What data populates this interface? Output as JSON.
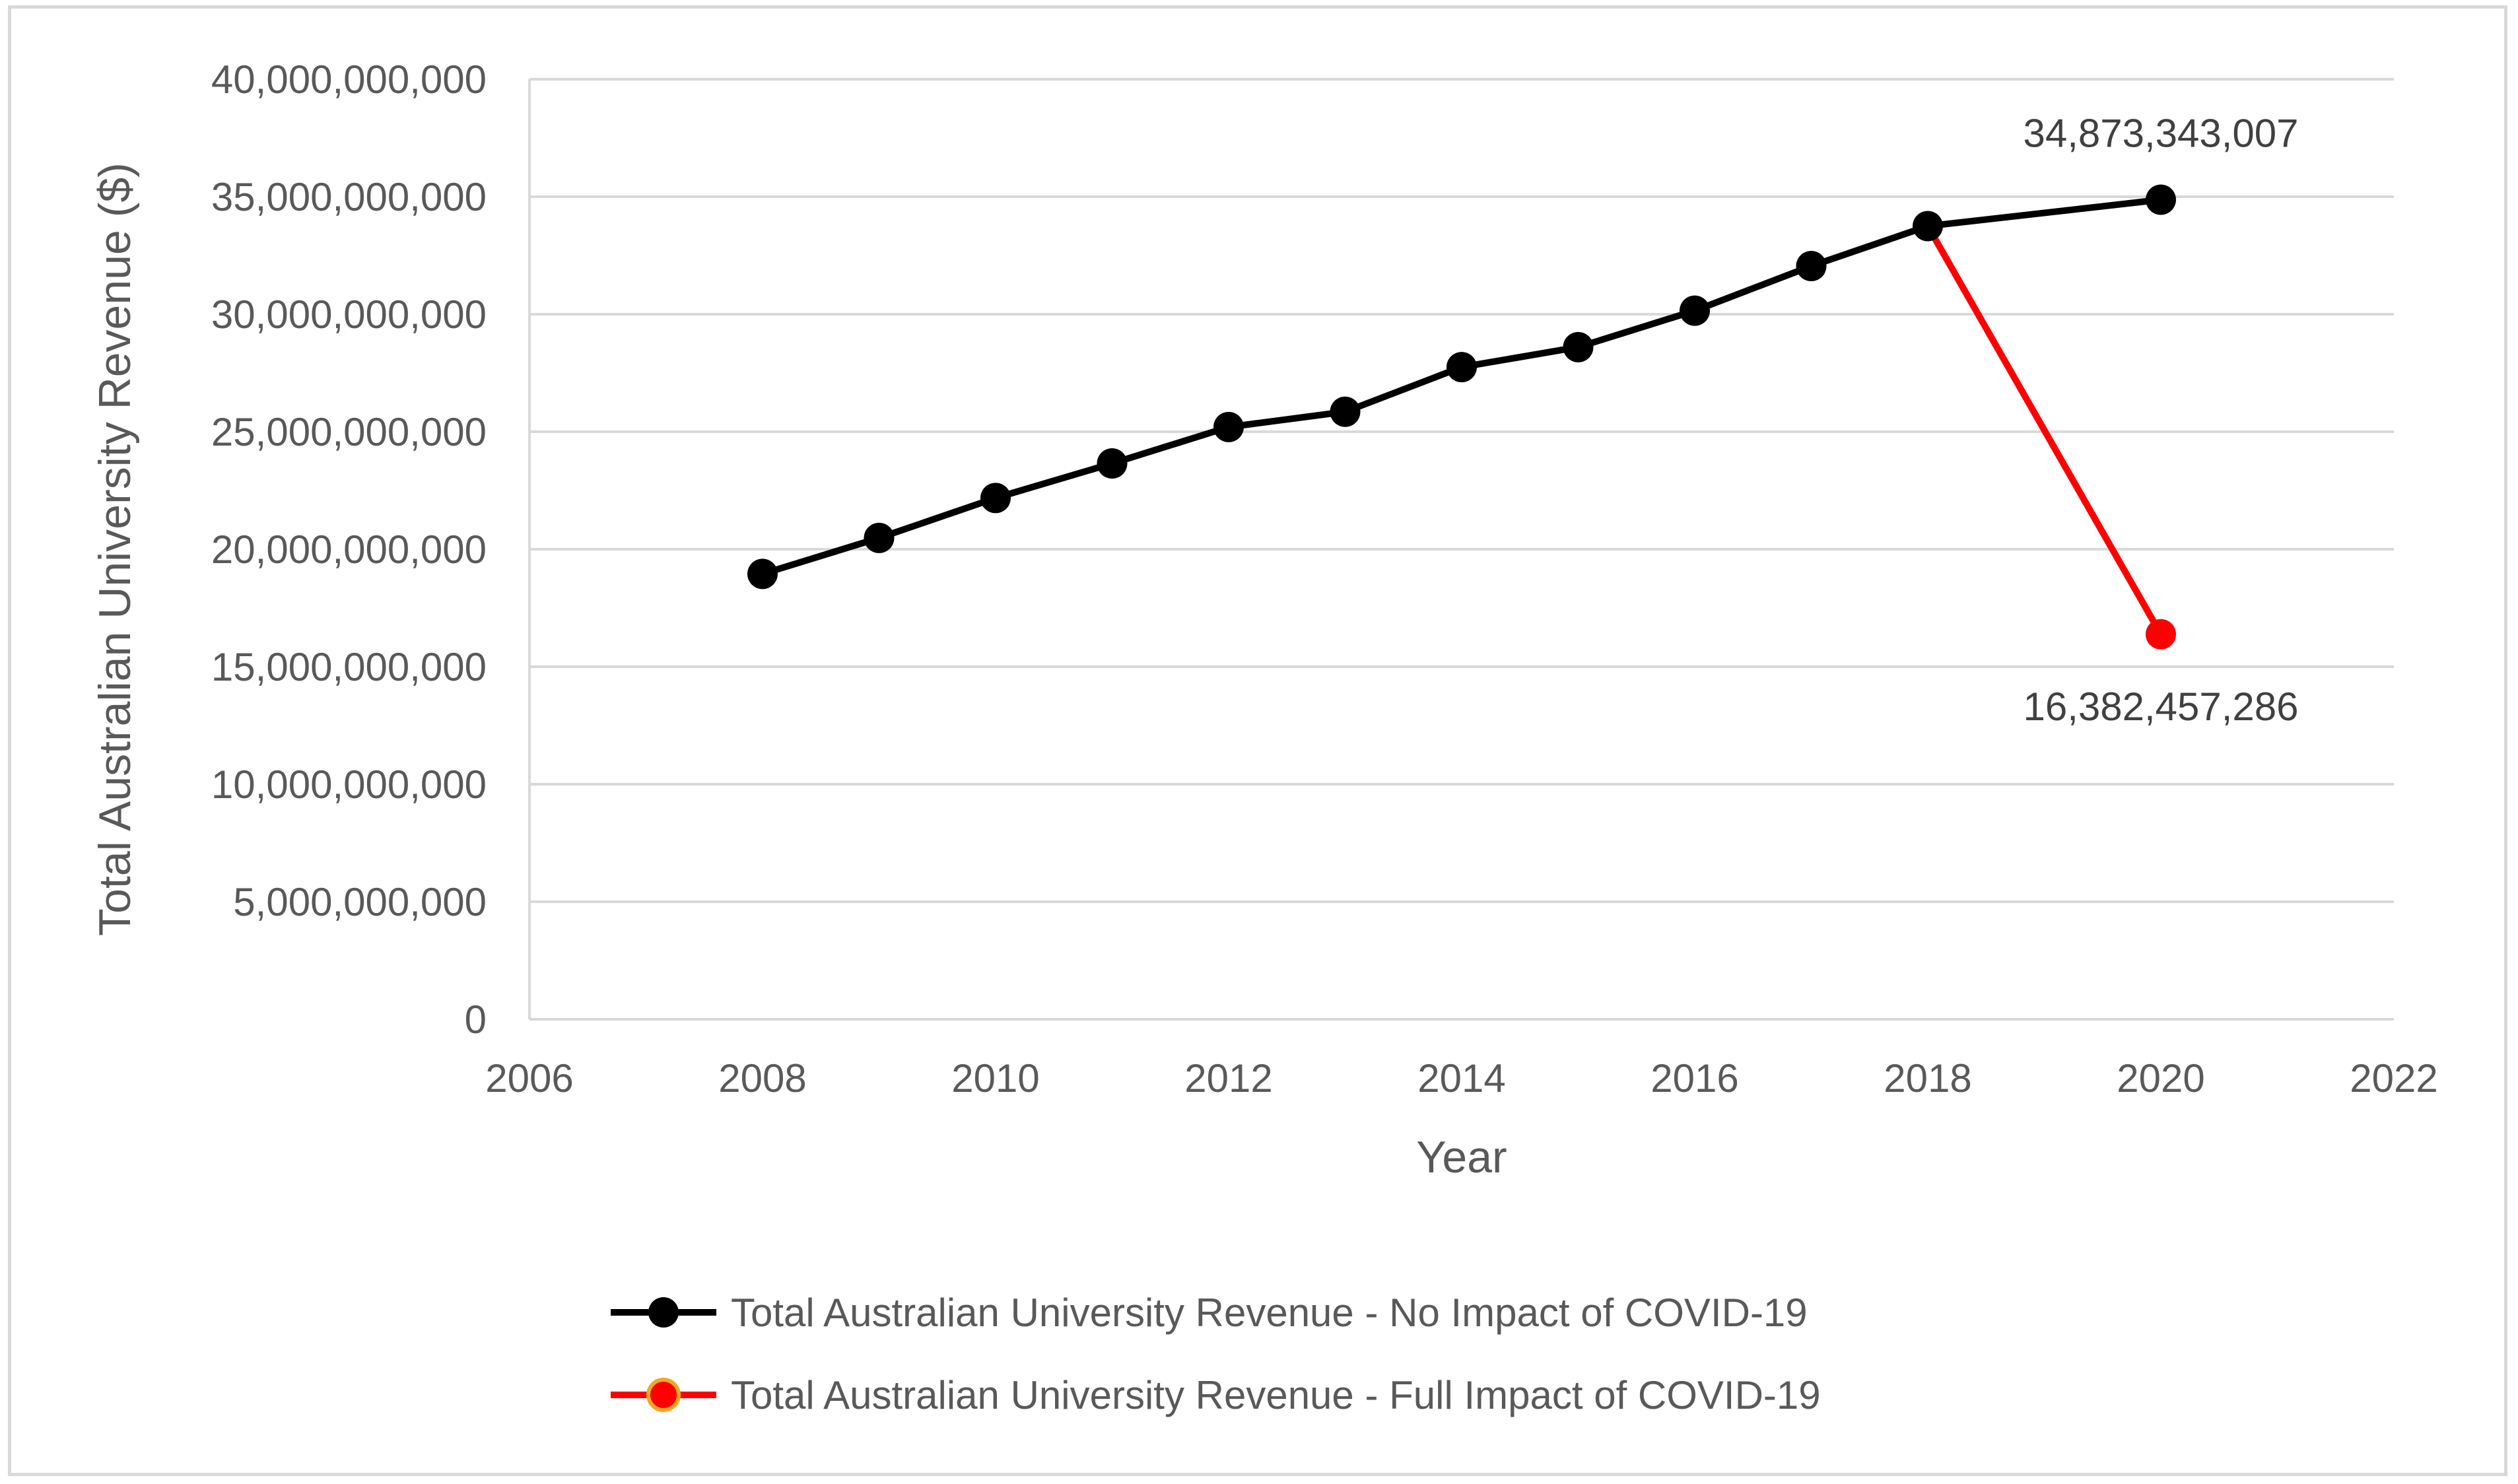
{
  "chart_data": {
    "type": "line",
    "title": "",
    "xlabel": "Year",
    "ylabel": "Total Australian University Revenue ($)",
    "xlim": [
      2006,
      2022
    ],
    "ylim": [
      0,
      40000000000
    ],
    "x_ticks": [
      2006,
      2008,
      2010,
      2012,
      2014,
      2016,
      2018,
      2020,
      2022
    ],
    "x_tick_labels": [
      "2006",
      "2008",
      "2010",
      "2012",
      "2014",
      "2016",
      "2018",
      "2020",
      "2022"
    ],
    "y_ticks": [
      0,
      5000000000,
      10000000000,
      15000000000,
      20000000000,
      25000000000,
      30000000000,
      35000000000,
      40000000000
    ],
    "y_tick_labels": [
      "0",
      "5,000,000,000",
      "10,000,000,000",
      "15,000,000,000",
      "20,000,000,000",
      "25,000,000,000",
      "30,000,000,000",
      "35,000,000,000",
      "40,000,000,000"
    ],
    "grid": true,
    "legend_position": "bottom",
    "series": [
      {
        "name": "Total Australian University Revenue - No Impact of COVID-19",
        "color": "#000000",
        "marker_fill": "#000000",
        "x": [
          2008,
          2009,
          2010,
          2011,
          2012,
          2013,
          2014,
          2015,
          2016,
          2017,
          2018,
          2020
        ],
        "values": [
          18950000000,
          20480000000,
          22180000000,
          23650000000,
          25200000000,
          25850000000,
          27750000000,
          28600000000,
          30150000000,
          32050000000,
          33750000000,
          34873343007
        ]
      },
      {
        "name": "Total Australian University Revenue - Full Impact of COVID-19",
        "color": "#ff0000",
        "marker_fill": "#ff0000",
        "marker_edge": "#f5a623",
        "x": [
          2018,
          2020
        ],
        "values": [
          33750000000,
          16382457286
        ]
      }
    ],
    "annotations": [
      {
        "x": 2020,
        "y": 34873343007,
        "text": "34,873,343,007",
        "position": "above"
      },
      {
        "x": 2020,
        "y": 16382457286,
        "text": "16,382,457,286",
        "position": "below"
      }
    ]
  }
}
